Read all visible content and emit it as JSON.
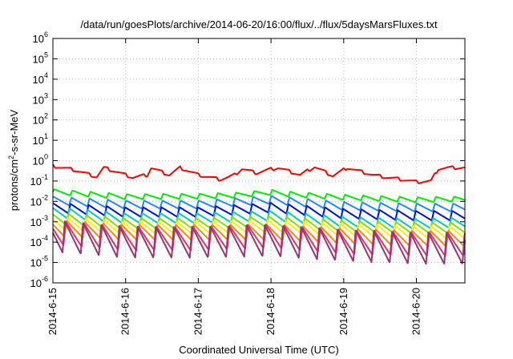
{
  "chart_data": {
    "type": "line",
    "title": "/data/run/goesPlots/archive/2014-06-20/16:00/flux/../flux/5daysMarsFluxes.txt",
    "xlabel": "Coordinated Universal Time (UTC)",
    "ylabel_main": "protons/cm",
    "ylabel_sup": "2",
    "ylabel_tail": "-s-sr-MeV",
    "y_scale": "log",
    "ylim": [
      1e-06,
      1000000.0
    ],
    "xlim": [
      "2014-06-15",
      "2014-06-20 16:00"
    ],
    "x_tick_labels": [
      "2014-6-15",
      "2014-6-16",
      "2014-6-17",
      "2014-6-18",
      "2014-6-19",
      "2014-6-20"
    ],
    "y_ticks": [
      {
        "base": "10",
        "exp": "-6"
      },
      {
        "base": "10",
        "exp": "-5"
      },
      {
        "base": "10",
        "exp": "-4"
      },
      {
        "base": "10",
        "exp": "-3"
      },
      {
        "base": "10",
        "exp": "-2"
      },
      {
        "base": "10",
        "exp": "-1"
      },
      {
        "base": "10",
        "exp": "0"
      },
      {
        "base": "10",
        "exp": "1"
      },
      {
        "base": "10",
        "exp": "2"
      },
      {
        "base": "10",
        "exp": "3"
      },
      {
        "base": "10",
        "exp": "4"
      },
      {
        "base": "10",
        "exp": "5"
      },
      {
        "base": "10",
        "exp": "6"
      }
    ],
    "grid": true,
    "sawtooth_period_hours": 6,
    "series": [
      {
        "color": "#ff0000",
        "anchors": [
          [
            0,
            0.55
          ],
          [
            0.3,
            0.35
          ],
          [
            0.6,
            0.16
          ],
          [
            0.7,
            0.45
          ],
          [
            0.8,
            0.35
          ],
          [
            1.1,
            0.15
          ],
          [
            1.3,
            0.2
          ],
          [
            1.35,
            0.45
          ],
          [
            1.6,
            0.2
          ],
          [
            1.75,
            0.45
          ],
          [
            2.0,
            0.2
          ],
          [
            2.3,
            0.12
          ],
          [
            2.4,
            0.15
          ],
          [
            2.5,
            0.2
          ],
          [
            2.6,
            0.4
          ],
          [
            2.8,
            0.25
          ],
          [
            2.95,
            0.35
          ],
          [
            3.1,
            0.45
          ],
          [
            3.4,
            0.2
          ],
          [
            3.6,
            0.5
          ],
          [
            3.85,
            0.18
          ],
          [
            4.05,
            0.45
          ],
          [
            4.4,
            0.2
          ],
          [
            4.6,
            0.15
          ],
          [
            4.8,
            0.12
          ],
          [
            5.0,
            0.09
          ],
          [
            5.2,
            0.1
          ],
          [
            5.3,
            0.4
          ],
          [
            5.44,
            0.45
          ]
        ],
        "jag": 0.7
      },
      {
        "color": "#00ee00",
        "anchors": [
          [
            0,
            0.03
          ],
          [
            1.0,
            0.017
          ],
          [
            2.0,
            0.018
          ],
          [
            2.5,
            0.02
          ],
          [
            3.0,
            0.028
          ],
          [
            3.3,
            0.022
          ],
          [
            4.0,
            0.016
          ],
          [
            5.0,
            0.012
          ],
          [
            5.44,
            0.013
          ]
        ],
        "jag": 1.8
      },
      {
        "color": "#2288ff",
        "anchors": [
          [
            0,
            0.011
          ],
          [
            1.0,
            0.007
          ],
          [
            2.0,
            0.007
          ],
          [
            3.0,
            0.012
          ],
          [
            4.0,
            0.006
          ],
          [
            5.0,
            0.005
          ],
          [
            5.44,
            0.005
          ]
        ],
        "jag": 2.5
      },
      {
        "color": "#0011cc",
        "anchors": [
          [
            0,
            0.005
          ],
          [
            1.0,
            0.003
          ],
          [
            2.0,
            0.003
          ],
          [
            3.0,
            0.005
          ],
          [
            4.0,
            0.0025
          ],
          [
            5.0,
            0.002
          ],
          [
            5.44,
            0.002
          ]
        ],
        "jag": 3.0
      },
      {
        "color": "#00ccbb",
        "anchors": [
          [
            0,
            0.003
          ],
          [
            1.0,
            0.0015
          ],
          [
            2.0,
            0.0015
          ],
          [
            3.0,
            0.002
          ],
          [
            4.0,
            0.001
          ],
          [
            5.0,
            0.0008
          ],
          [
            5.44,
            0.0009
          ]
        ],
        "jag": 3.2
      },
      {
        "color": "#88dd00",
        "anchors": [
          [
            0,
            0.0015
          ],
          [
            1.0,
            0.0008
          ],
          [
            2.0,
            0.0008
          ],
          [
            3.0,
            0.001
          ],
          [
            4.0,
            0.0006
          ],
          [
            5.0,
            0.0005
          ],
          [
            5.44,
            0.0005
          ]
        ],
        "jag": 3.6
      },
      {
        "color": "#ffee00",
        "anchors": [
          [
            0,
            0.0009
          ],
          [
            1.0,
            0.0005
          ],
          [
            2.0,
            0.0005
          ],
          [
            3.0,
            0.0006
          ],
          [
            4.0,
            0.0004
          ],
          [
            5.0,
            0.0003
          ],
          [
            5.44,
            0.0003
          ]
        ],
        "jag": 4.2
      },
      {
        "color": "#ff8800",
        "anchors": [
          [
            0,
            0.0005
          ],
          [
            1.0,
            0.0003
          ],
          [
            2.0,
            0.0003
          ],
          [
            3.0,
            0.0003
          ],
          [
            4.0,
            0.0002
          ],
          [
            5.0,
            0.00015
          ],
          [
            5.44,
            0.00015
          ]
        ],
        "jag": 6.0
      },
      {
        "color": "#dd3366",
        "anchors": [
          [
            0,
            0.0003
          ],
          [
            1.0,
            0.00015
          ],
          [
            2.0,
            0.00015
          ],
          [
            3.0,
            0.0002
          ],
          [
            4.0,
            0.0001
          ],
          [
            5.0,
            8e-05
          ],
          [
            5.44,
            8e-05
          ]
        ],
        "jag": 15.0
      },
      {
        "color": "#993377",
        "anchors": [
          [
            0,
            0.0002
          ],
          [
            1.0,
            0.0001
          ],
          [
            2.0,
            0.0001
          ],
          [
            3.0,
            0.00012
          ],
          [
            4.0,
            7e-05
          ],
          [
            5.0,
            5e-05
          ],
          [
            5.44,
            5e-05
          ]
        ],
        "jag": 35.0
      }
    ]
  }
}
